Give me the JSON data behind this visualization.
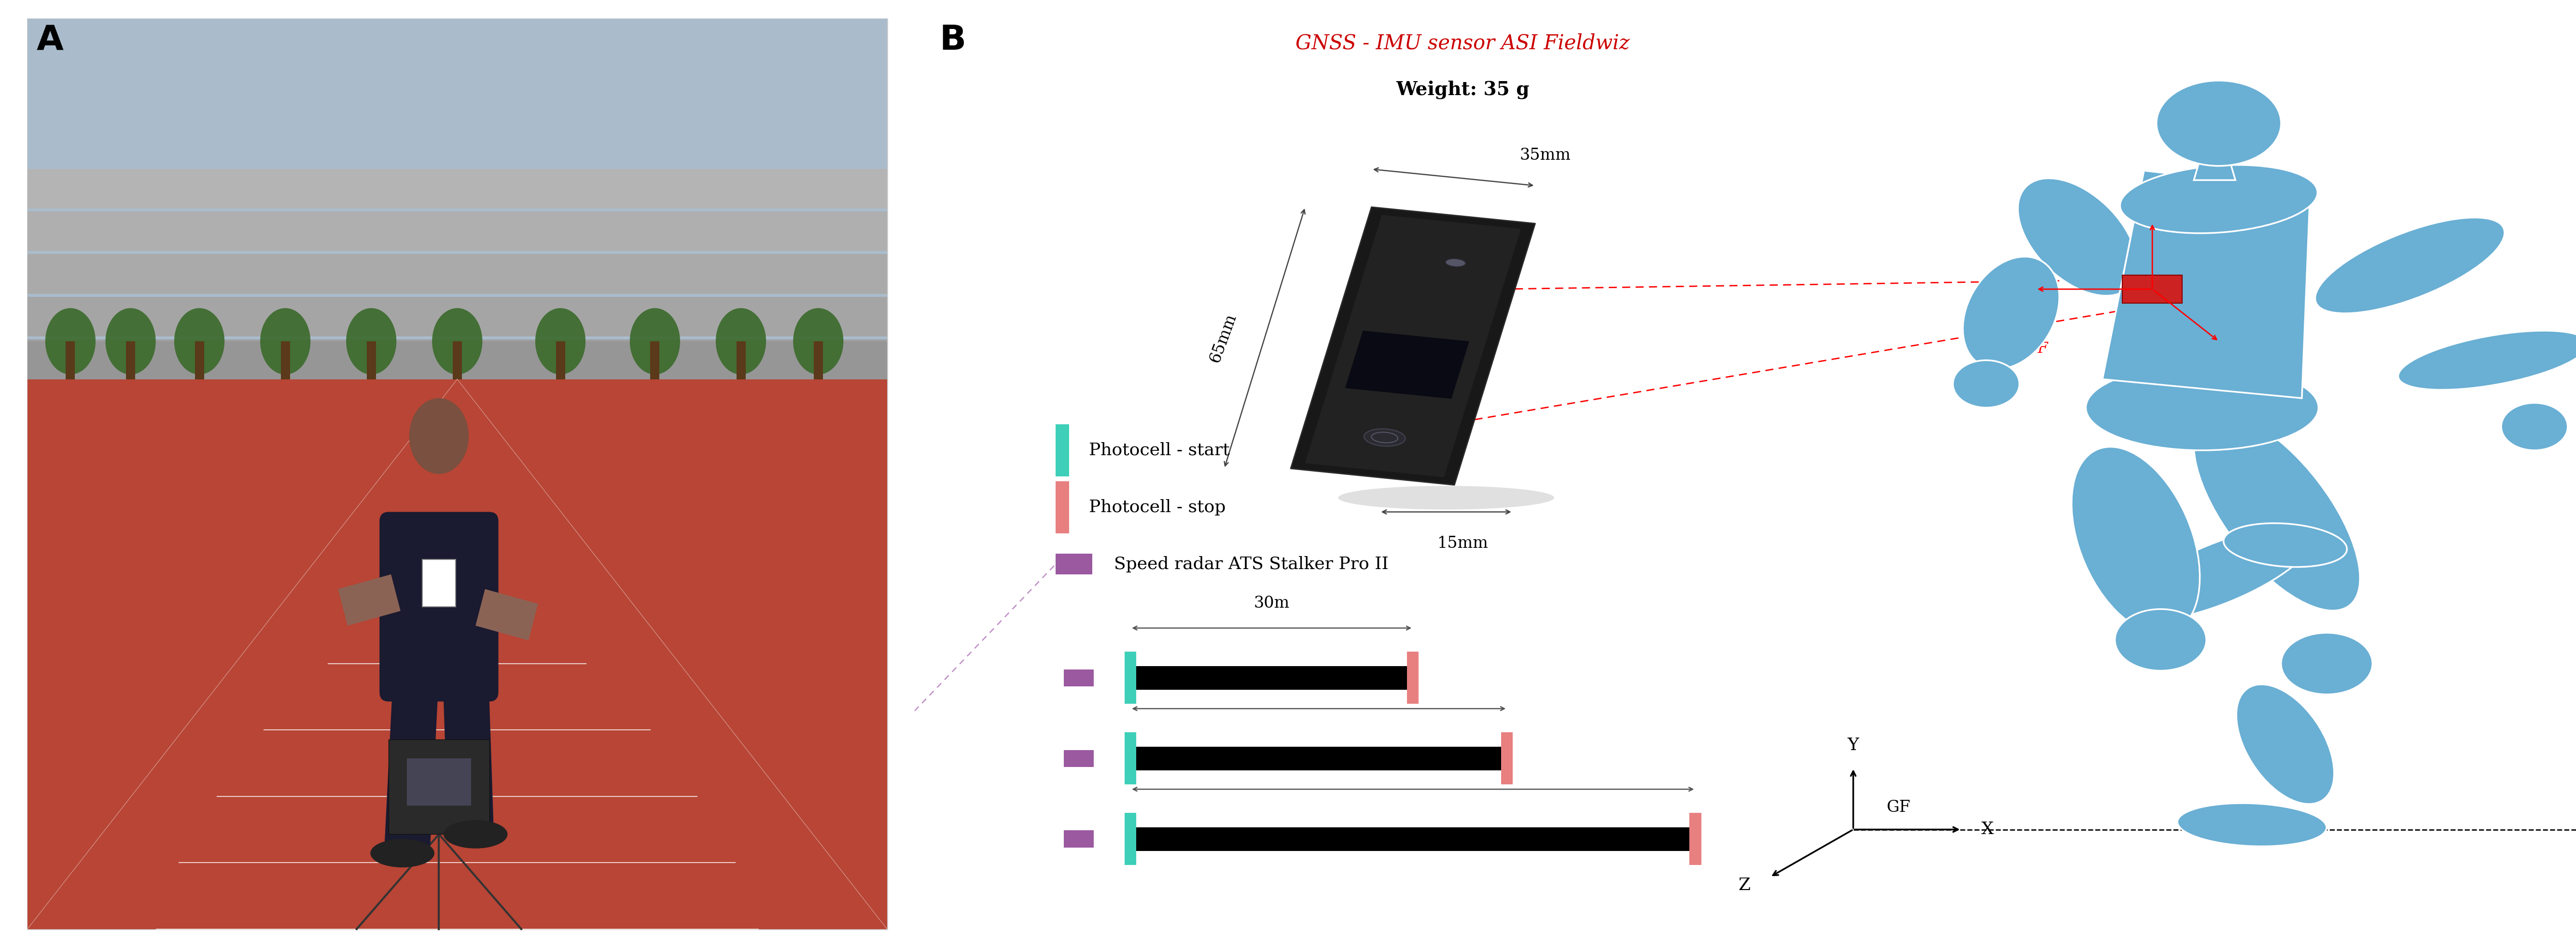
{
  "fig_width": 53.37,
  "fig_height": 19.64,
  "bg_color": "#ffffff",
  "panel_A_label": "A",
  "panel_B_label": "B",
  "gnss_title": "GNSS - IMU sensor ASI Fieldwiz",
  "gnss_title_color": "#cc0000",
  "weight_text": "Weight: 35 g",
  "dim_35mm": "35mm",
  "dim_65mm": "65mm",
  "dim_15mm": "15mm",
  "legend_photocell_start": "Photocell - start",
  "legend_photocell_stop": "Photocell - stop",
  "legend_radar": "Speed radar ATS Stalker Pro II",
  "color_start": "#3ecfb8",
  "color_stop": "#e88080",
  "color_radar": "#9b59a0",
  "color_radar_dashed": "#b070b8",
  "runner_color": "#6aafd4",
  "runner_outline": "#ffffff",
  "sensor_color_main": "#1a1a1a",
  "sensor_color_screen": "#111122",
  "sensor_color_btn": "#333344"
}
